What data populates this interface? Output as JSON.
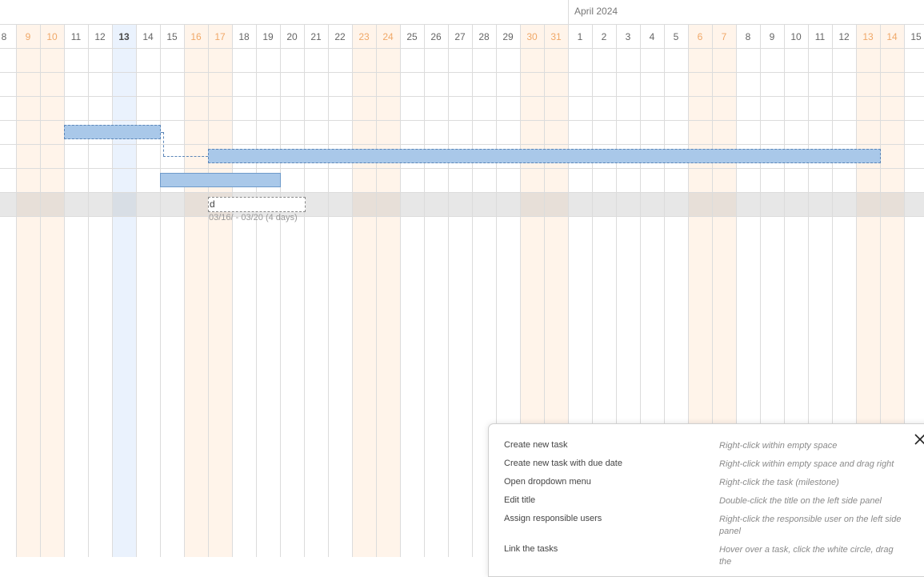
{
  "timeline": {
    "month_label": "April 2024",
    "days": [
      {
        "label": "8",
        "weekend": false,
        "today": false
      },
      {
        "label": "9",
        "weekend": true,
        "today": false
      },
      {
        "label": "10",
        "weekend": true,
        "today": false
      },
      {
        "label": "11",
        "weekend": false,
        "today": false
      },
      {
        "label": "12",
        "weekend": false,
        "today": false
      },
      {
        "label": "13",
        "weekend": false,
        "today": true
      },
      {
        "label": "14",
        "weekend": false,
        "today": false
      },
      {
        "label": "15",
        "weekend": false,
        "today": false
      },
      {
        "label": "16",
        "weekend": true,
        "today": false
      },
      {
        "label": "17",
        "weekend": true,
        "today": false
      },
      {
        "label": "18",
        "weekend": false,
        "today": false
      },
      {
        "label": "19",
        "weekend": false,
        "today": false
      },
      {
        "label": "20",
        "weekend": false,
        "today": false
      },
      {
        "label": "21",
        "weekend": false,
        "today": false
      },
      {
        "label": "22",
        "weekend": false,
        "today": false
      },
      {
        "label": "23",
        "weekend": true,
        "today": false
      },
      {
        "label": "24",
        "weekend": true,
        "today": false
      },
      {
        "label": "25",
        "weekend": false,
        "today": false
      },
      {
        "label": "26",
        "weekend": false,
        "today": false
      },
      {
        "label": "27",
        "weekend": false,
        "today": false
      },
      {
        "label": "28",
        "weekend": false,
        "today": false
      },
      {
        "label": "29",
        "weekend": false,
        "today": false
      },
      {
        "label": "30",
        "weekend": true,
        "today": false
      },
      {
        "label": "31",
        "weekend": true,
        "today": false
      },
      {
        "label": "1",
        "weekend": false,
        "today": false,
        "month_start": true
      },
      {
        "label": "2",
        "weekend": false,
        "today": false
      },
      {
        "label": "3",
        "weekend": false,
        "today": false
      },
      {
        "label": "4",
        "weekend": false,
        "today": false
      },
      {
        "label": "5",
        "weekend": false,
        "today": false
      },
      {
        "label": "6",
        "weekend": true,
        "today": false
      },
      {
        "label": "7",
        "weekend": true,
        "today": false
      },
      {
        "label": "8",
        "weekend": false,
        "today": false
      },
      {
        "label": "9",
        "weekend": false,
        "today": false
      },
      {
        "label": "10",
        "weekend": false,
        "today": false
      },
      {
        "label": "11",
        "weekend": false,
        "today": false
      },
      {
        "label": "12",
        "weekend": false,
        "today": false
      },
      {
        "label": "13",
        "weekend": true,
        "today": false
      },
      {
        "label": "14",
        "weekend": true,
        "today": false
      },
      {
        "label": "15",
        "weekend": false,
        "today": false
      }
    ]
  },
  "colors": {
    "weekend_bg": "#fff4ea",
    "weekend_text": "#f0a868",
    "today_bg": "#eaf2fd",
    "bar_fill": "#a9c8e9",
    "bar_border": "#5c86b8",
    "grid_line": "#dcdcdc"
  },
  "title_edit": {
    "value": "d",
    "dates": "03/16/ - 03/20 (4 days)"
  },
  "help": {
    "close_icon": "close-icon",
    "items": [
      {
        "action": "Create new task",
        "hint": "Right-click within empty space"
      },
      {
        "action": "Create new task with due date",
        "hint": "Right-click within empty space and drag right"
      },
      {
        "action": "Open dropdown menu",
        "hint": "Right-click the task (milestone)"
      },
      {
        "action": "Edit title",
        "hint": "Double-click the title on the left side panel"
      },
      {
        "action": "Assign responsible users",
        "hint": "Right-click the responsible user on the left side panel"
      },
      {
        "action": "Link the tasks",
        "hint": "Hover over a task, click the white circle, drag the"
      }
    ]
  }
}
